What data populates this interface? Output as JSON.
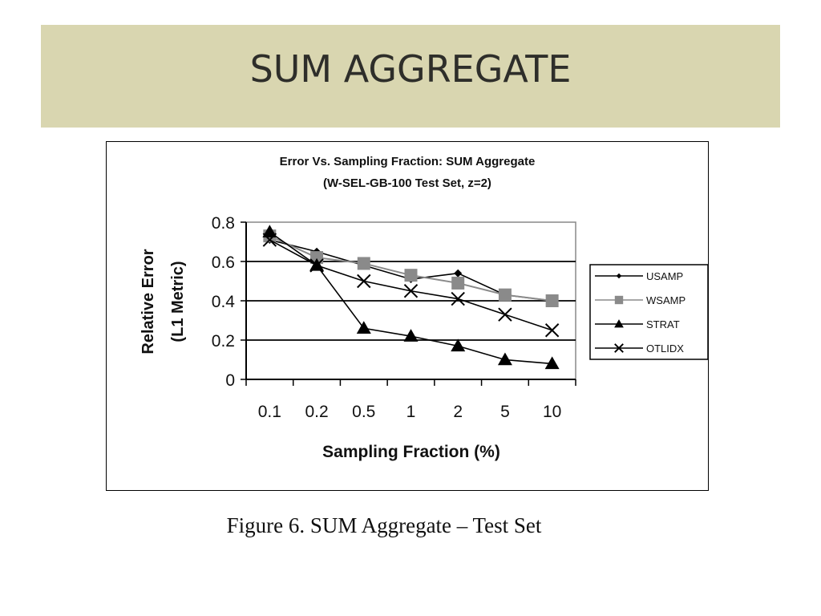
{
  "slide": {
    "title": "SUM AGGREGATE",
    "caption": "Figure 6. SUM Aggregate – Test Set",
    "banner_color": "#d9d6b0"
  },
  "chart_data": {
    "type": "line",
    "title": "Error Vs. Sampling Fraction: SUM Aggregate",
    "subtitle": "(W-SEL-GB-100 Test Set, z=2)",
    "xlabel": "Sampling Fraction (%)",
    "ylabel_line1": "Relative Error",
    "ylabel_line2": "(L1 Metric)",
    "categories": [
      "0.1",
      "0.2",
      "0.5",
      "1",
      "2",
      "5",
      "10"
    ],
    "ylim": [
      0,
      0.8
    ],
    "yticks": [
      "0",
      "0.2",
      "0.4",
      "0.6",
      "0.8"
    ],
    "ytick_values": [
      0,
      0.2,
      0.4,
      0.6,
      0.8
    ],
    "grid": "horizontal",
    "legend_position": "right",
    "series": [
      {
        "name": "USAMP",
        "marker": "diamond",
        "color": "#000000",
        "values": [
          0.71,
          0.65,
          0.58,
          0.51,
          0.54,
          0.43,
          0.4
        ]
      },
      {
        "name": "WSAMP",
        "marker": "square",
        "color": "#8a8a8a",
        "values": [
          0.73,
          0.62,
          0.59,
          0.53,
          0.49,
          0.43,
          0.4
        ]
      },
      {
        "name": "STRAT",
        "marker": "triangle",
        "color": "#000000",
        "values": [
          0.75,
          0.58,
          0.26,
          0.22,
          0.17,
          0.1,
          0.08
        ]
      },
      {
        "name": "OTLIDX",
        "marker": "x",
        "color": "#000000",
        "values": [
          0.71,
          0.58,
          0.5,
          0.45,
          0.41,
          0.33,
          0.25
        ]
      }
    ]
  }
}
